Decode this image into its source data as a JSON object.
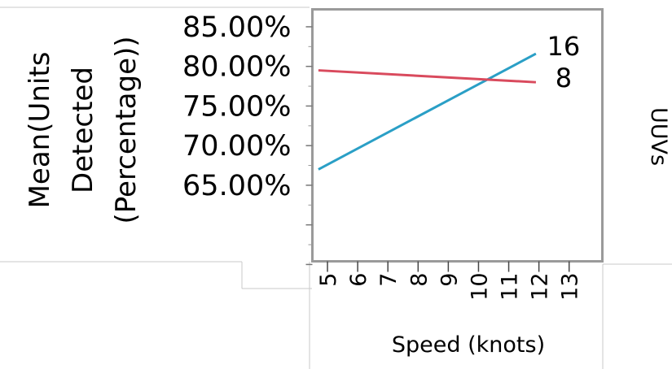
{
  "chart_data": {
    "type": "line",
    "ylabel": [
      "Mean(Units",
      "Detected",
      "(Percentage))"
    ],
    "xlabel": "Speed (knots)",
    "y_ticks": [
      "85.00%",
      "80.00%",
      "75.00%",
      "70.00%",
      "65.00%"
    ],
    "y_tick_values": [
      85,
      80,
      75,
      70,
      65
    ],
    "ylim": [
      55.4,
      87.2
    ],
    "x_ticks": [
      "5",
      "6",
      "7",
      "8",
      "9",
      "10",
      "11",
      "12",
      "13"
    ],
    "x_tick_values": [
      5,
      6,
      7,
      8,
      9,
      10,
      11,
      12,
      13
    ],
    "xlim": [
      4.5,
      14.1
    ],
    "legend_title": "UUVs",
    "series": [
      {
        "name": "16",
        "color": "#2a9fc6",
        "x": [
          4.7,
          11.9
        ],
        "y": [
          67.0,
          81.6
        ]
      },
      {
        "name": "8",
        "color": "#d94a5d",
        "x": [
          4.7,
          11.9
        ],
        "y": [
          79.5,
          78.0
        ]
      }
    ],
    "grid": false
  }
}
